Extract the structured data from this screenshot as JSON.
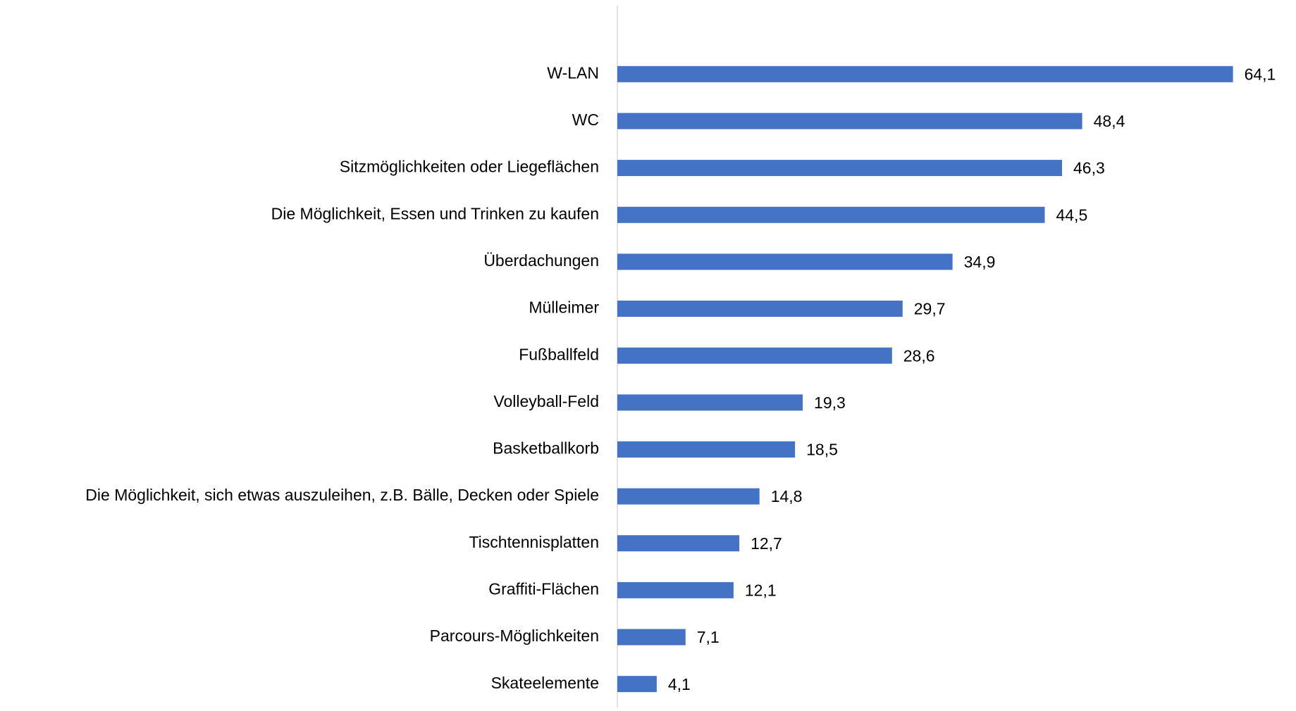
{
  "chart_data": {
    "type": "barh",
    "categories": [
      "W-LAN",
      "WC",
      "Sitzmöglichkeiten oder Liegeflächen",
      "Die Möglichkeit, Essen und Trinken zu kaufen",
      "Überdachungen",
      "Mülleimer",
      "Fußballfeld",
      "Volleyball-Feld",
      "Basketballkorb",
      "Die Möglichkeit, sich etwas auszuleihen, z.B. Bälle, Decken oder Spiele",
      "Tischtennisplatten",
      "Graffiti-Flächen",
      "Parcours-Möglichkeiten",
      "Skateelemente"
    ],
    "values": [
      64.1,
      48.4,
      46.3,
      44.5,
      34.9,
      29.7,
      28.6,
      19.3,
      18.5,
      14.8,
      12.7,
      12.1,
      7.1,
      4.1
    ],
    "value_labels": [
      "64,1",
      "48,4",
      "46,3",
      "44,5",
      "34,9",
      "29,7",
      "28,6",
      "19,3",
      "18,5",
      "14,8",
      "12,7",
      "12,1",
      "7,1",
      "4,1"
    ],
    "color": "#4472c4",
    "xlim": [
      0,
      70
    ]
  }
}
